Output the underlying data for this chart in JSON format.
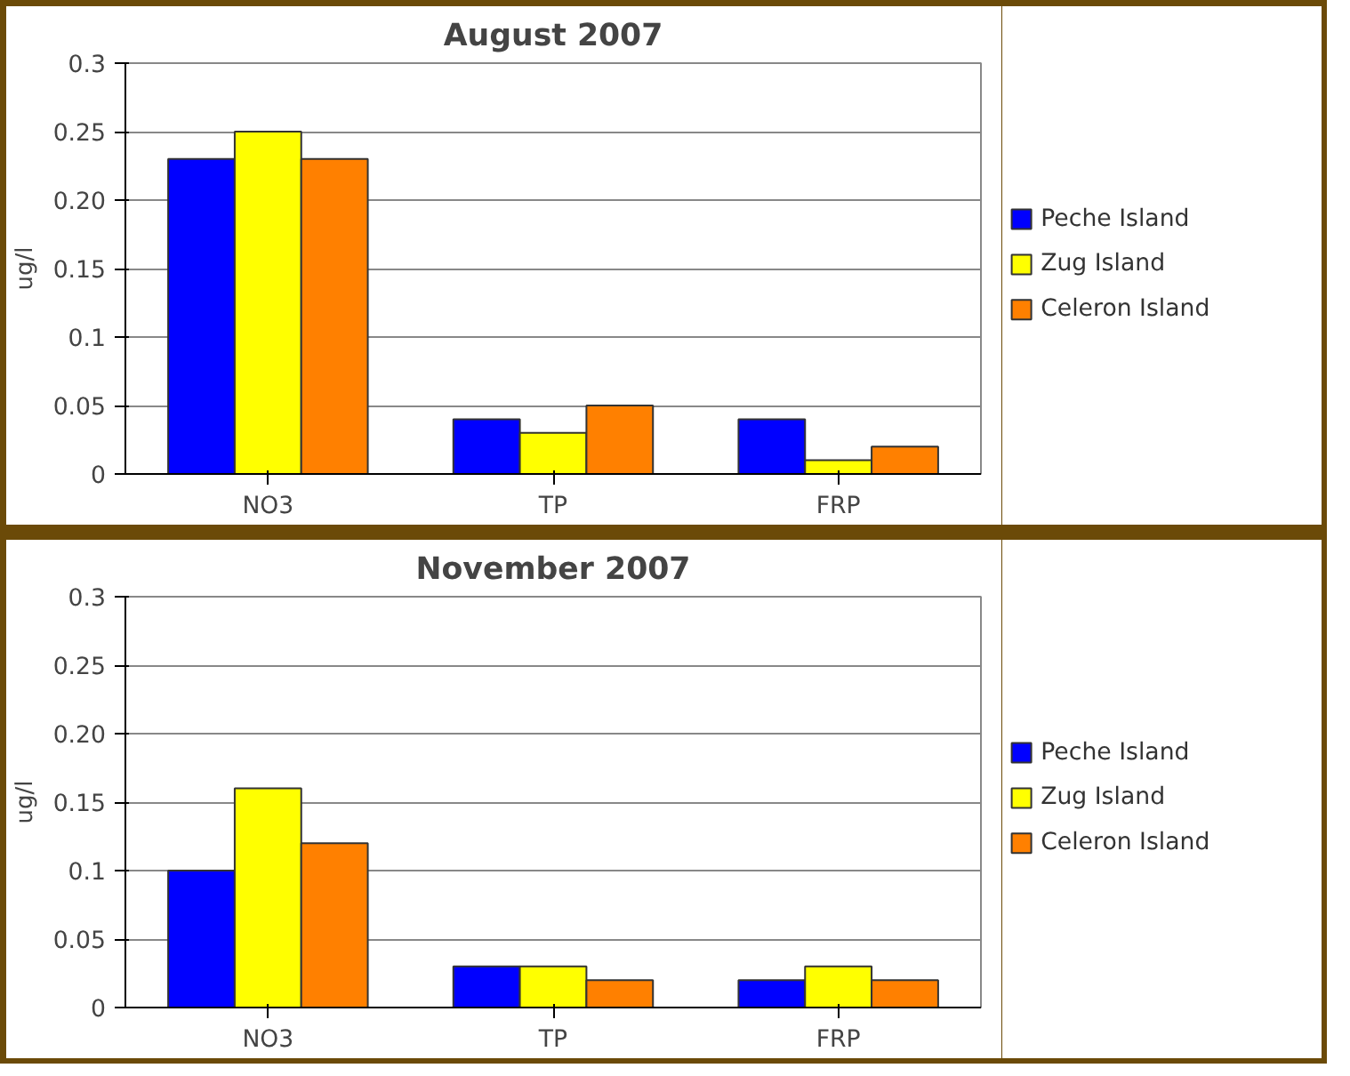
{
  "chart_data": [
    {
      "type": "bar",
      "title": "August 2007",
      "ylabel": "ug/l",
      "categories": [
        "NO3",
        "TP",
        "FRP"
      ],
      "series": [
        {
          "name": "Peche Island",
          "color": "#0000ff",
          "values": [
            0.23,
            0.04,
            0.04
          ]
        },
        {
          "name": "Zug Island",
          "color": "#ffff00",
          "values": [
            0.25,
            0.03,
            0.01
          ]
        },
        {
          "name": "Celeron Island",
          "color": "#ff8000",
          "values": [
            0.23,
            0.05,
            0.02
          ]
        }
      ],
      "ylim": [
        0,
        0.3
      ],
      "yticks": [
        0,
        0.05,
        0.1,
        0.15,
        {
          "value": 0.2,
          "label": "0.20"
        },
        0.25,
        0.3
      ],
      "grid": "y",
      "legend": "right"
    },
    {
      "type": "bar",
      "title": "November 2007",
      "ylabel": "ug/l",
      "categories": [
        "NO3",
        "TP",
        "FRP"
      ],
      "series": [
        {
          "name": "Peche Island",
          "color": "#0000ff",
          "values": [
            0.1,
            0.03,
            0.02
          ]
        },
        {
          "name": "Zug Island",
          "color": "#ffff00",
          "values": [
            0.16,
            0.03,
            0.03
          ]
        },
        {
          "name": "Celeron Island",
          "color": "#ff8000",
          "values": [
            0.12,
            0.02,
            0.02
          ]
        }
      ],
      "ylim": [
        0,
        0.3
      ],
      "yticks": [
        0,
        0.05,
        0.1,
        0.15,
        {
          "value": 0.2,
          "label": "0.20"
        },
        0.25,
        0.3
      ],
      "grid": "y",
      "legend": "right"
    }
  ]
}
